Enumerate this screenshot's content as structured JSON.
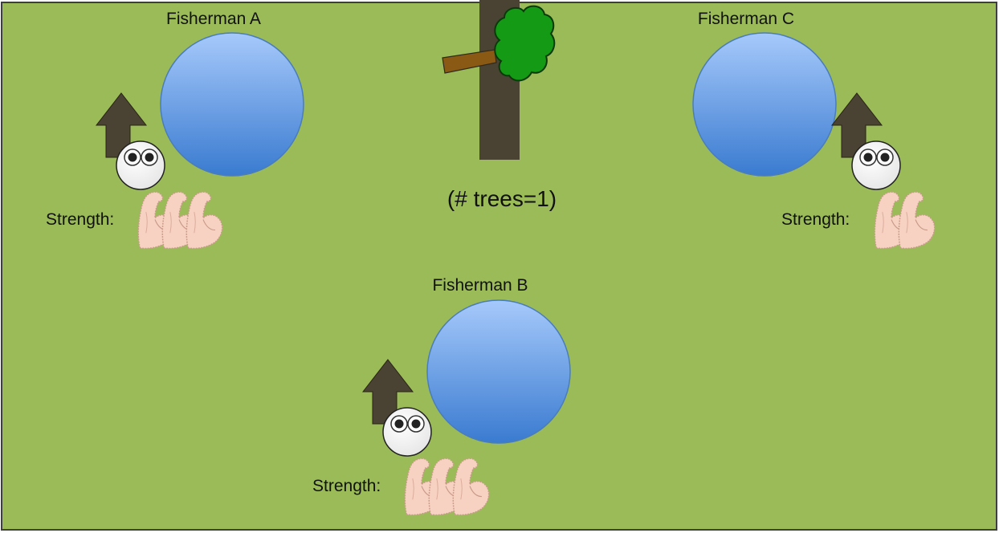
{
  "colors": {
    "field": "#9bbb59",
    "pond_light": "#a6c9fb",
    "pond_dark": "#3a7bd0",
    "hut": "#4a4232",
    "trunk": "#4a4232",
    "branch": "#8a5a14",
    "leaves": "#149a14",
    "arm": "#f7d2c2",
    "arm_outline": "#c89a8a"
  },
  "tree_count_label": "(# trees=1)",
  "tree": {
    "trunk_icon": "tree-trunk-icon",
    "canopy_icon": "tree-canopy-icon"
  },
  "fishermen": [
    {
      "id": "a",
      "name": "Fisherman A",
      "strength_label": "Strength:",
      "strength": 3,
      "icons": [
        "hut-icon",
        "face-icon",
        "pond-icon",
        "muscle-arm-icon"
      ]
    },
    {
      "id": "b",
      "name": "Fisherman B",
      "strength_label": "Strength:",
      "strength": 3,
      "icons": [
        "hut-icon",
        "face-icon",
        "pond-icon",
        "muscle-arm-icon"
      ]
    },
    {
      "id": "c",
      "name": "Fisherman C",
      "strength_label": "Strength:",
      "strength": 2,
      "icons": [
        "hut-icon",
        "face-icon",
        "pond-icon",
        "muscle-arm-icon"
      ]
    }
  ]
}
